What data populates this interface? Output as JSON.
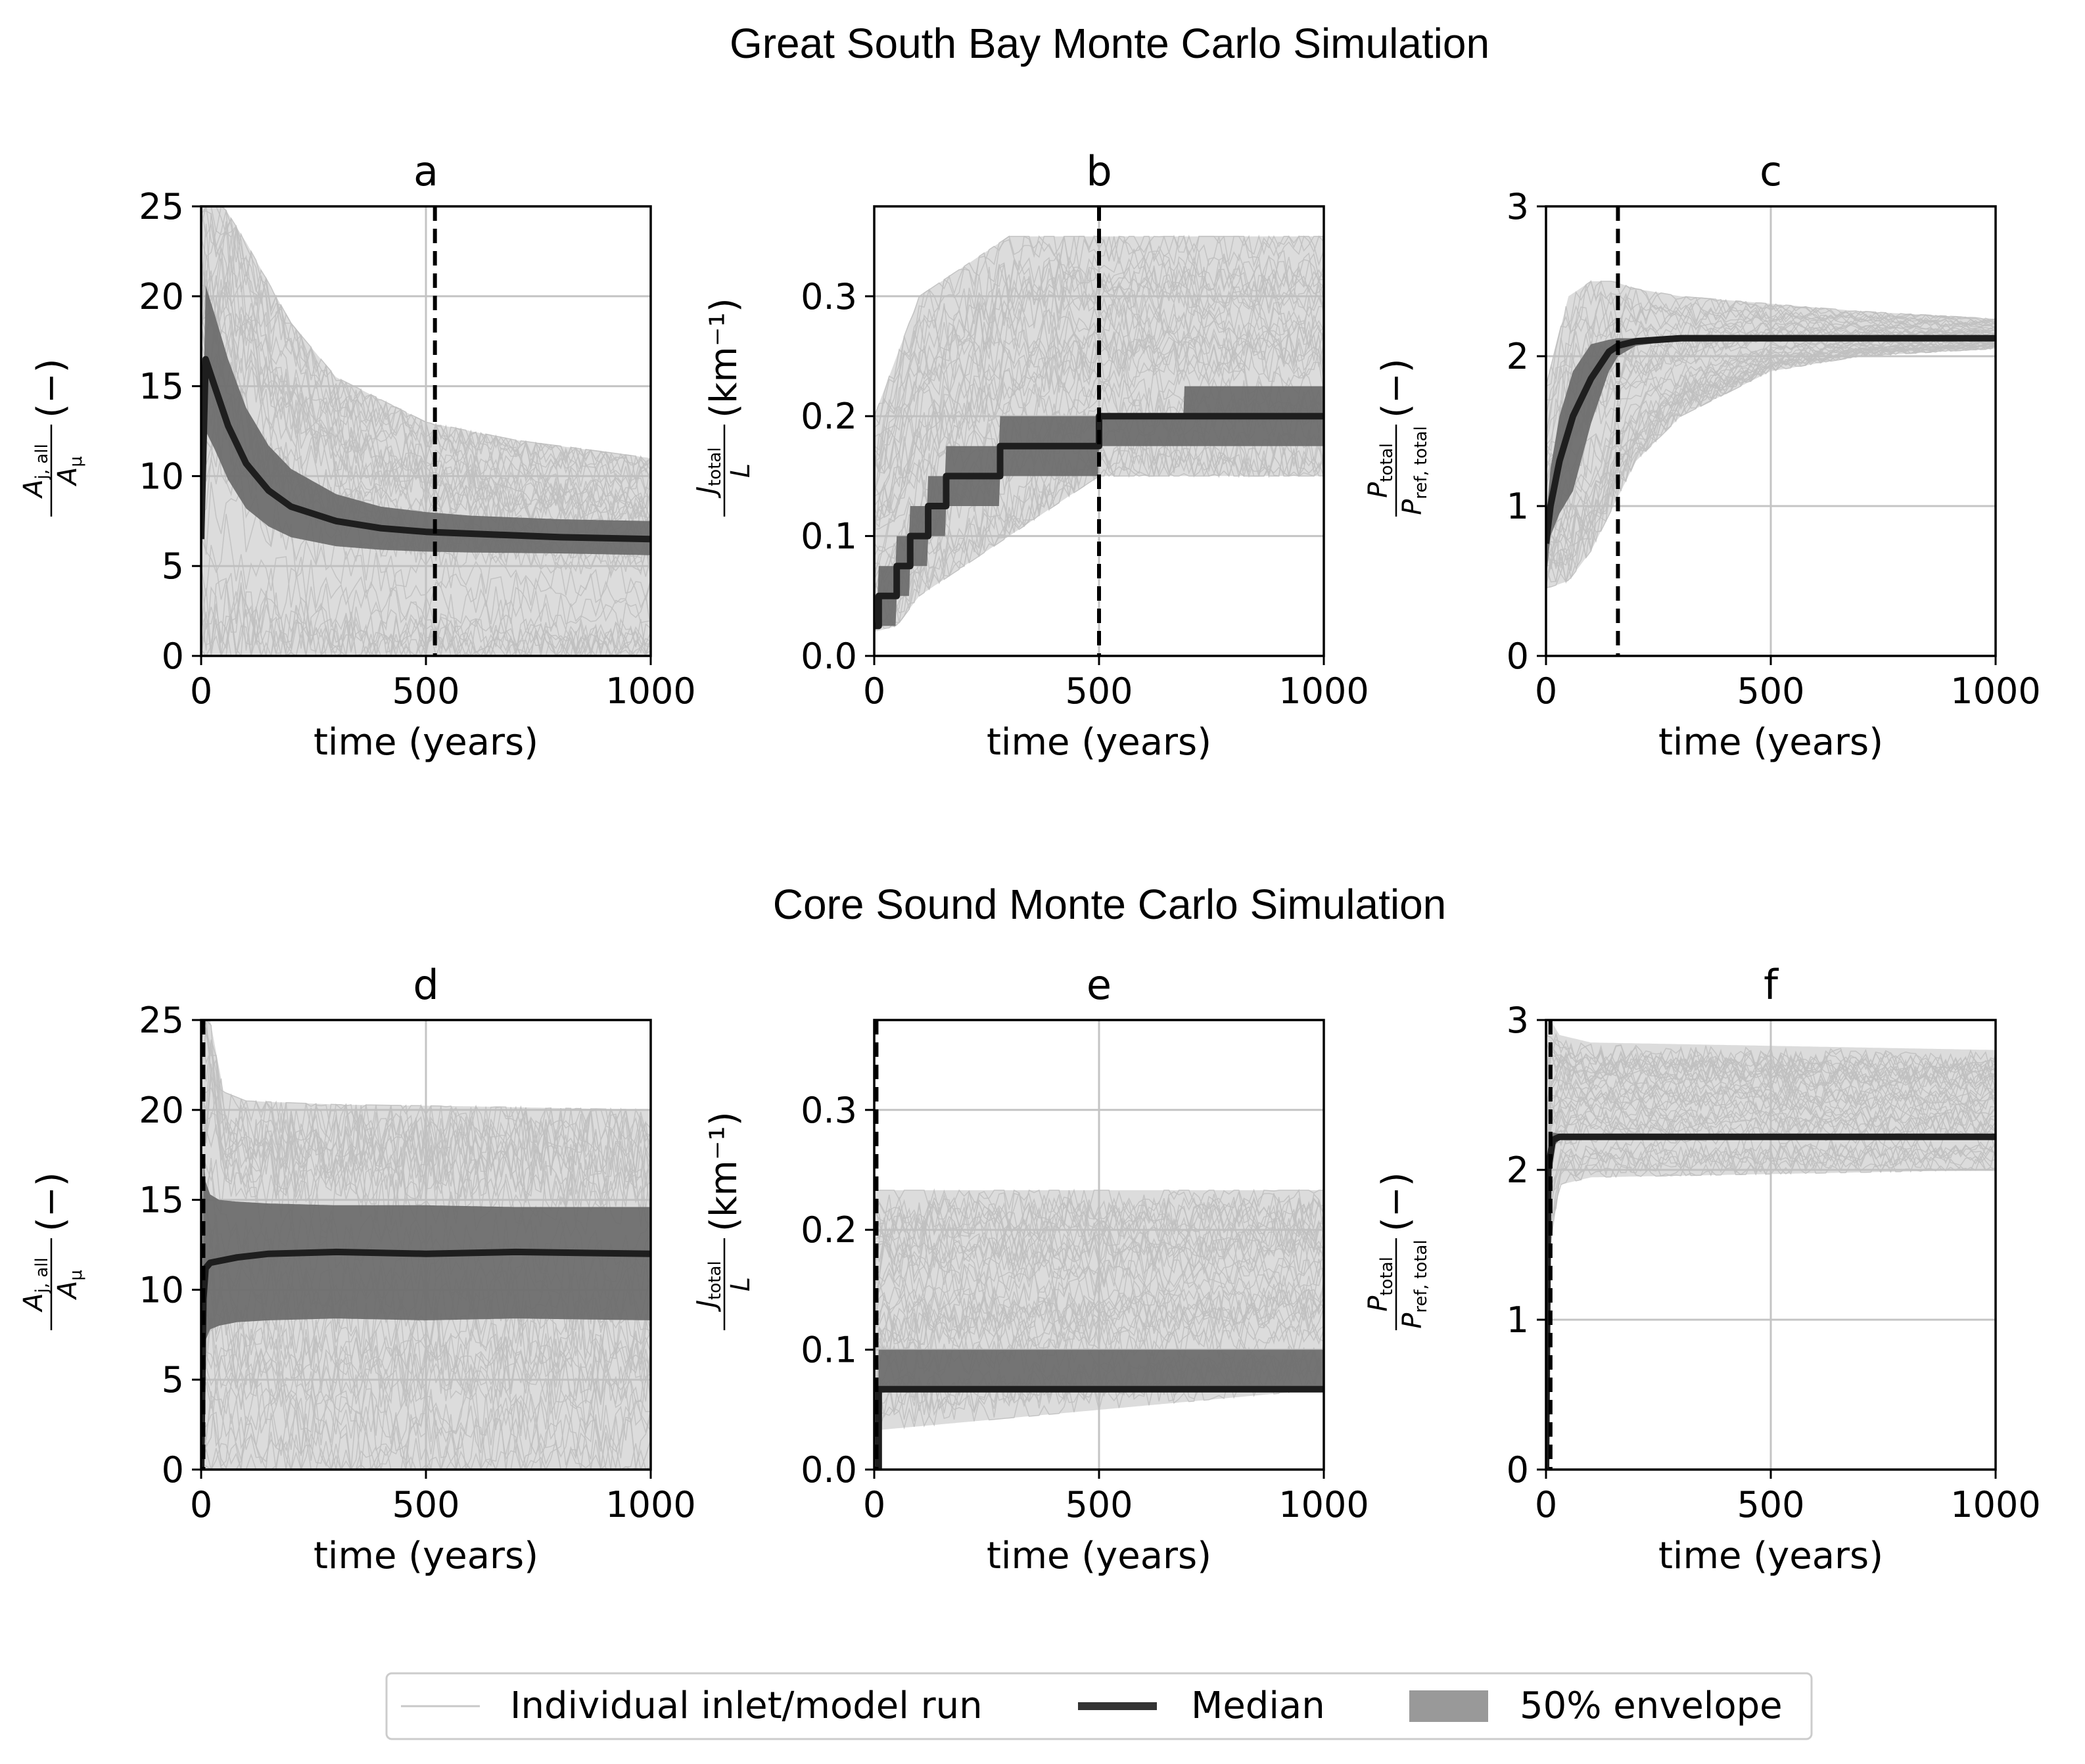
{
  "figure": {
    "row_titles": [
      "Great South Bay Monte Carlo Simulation",
      "Core Sound Monte Carlo Simulation"
    ]
  },
  "legend": {
    "items": [
      {
        "label": "Individual inlet/model run",
        "color": "#c8c8c8",
        "kind": "thin-line"
      },
      {
        "label": "Median",
        "color": "#333333",
        "kind": "thick-line"
      },
      {
        "label": "50% envelope",
        "color": "#999999",
        "kind": "patch"
      }
    ]
  },
  "colors": {
    "runs": "#c0c0c0",
    "envelope": "#6e6e6e",
    "median": "#1e1e1e",
    "grid": "#c4c4c4",
    "vline": "#000000"
  },
  "chart_data": [
    {
      "panel": "a",
      "type": "line",
      "title": "a",
      "row": 0,
      "col": 0,
      "xlabel": "time (years)",
      "ylabel": {
        "num": "A",
        "num_sub": "j, all",
        "den": "A",
        "den_sub": "μ",
        "unit": "(−)"
      },
      "xlim": [
        0,
        1000
      ],
      "ylim": [
        0,
        25
      ],
      "xticks": [
        0,
        500,
        1000
      ],
      "yticks": [
        0,
        5,
        10,
        15,
        20,
        25
      ],
      "grid": true,
      "step": false,
      "vline_x": 520,
      "median": {
        "x": [
          0,
          10,
          30,
          60,
          100,
          150,
          200,
          300,
          400,
          500,
          600,
          800,
          1000
        ],
        "y": [
          6.5,
          16.5,
          15.0,
          12.8,
          10.7,
          9.2,
          8.3,
          7.5,
          7.1,
          6.9,
          6.8,
          6.6,
          6.5
        ]
      },
      "q25": {
        "x": [
          0,
          10,
          30,
          60,
          100,
          150,
          200,
          300,
          400,
          500,
          600,
          800,
          1000
        ],
        "y": [
          6.0,
          12.5,
          11.5,
          9.8,
          8.2,
          7.2,
          6.6,
          6.1,
          5.9,
          5.8,
          5.75,
          5.7,
          5.6
        ]
      },
      "q75": {
        "x": [
          0,
          10,
          30,
          60,
          100,
          150,
          200,
          300,
          400,
          500,
          600,
          800,
          1000
        ],
        "y": [
          7.0,
          20.6,
          19.0,
          16.5,
          13.8,
          11.7,
          10.4,
          9.0,
          8.3,
          8.0,
          7.8,
          7.6,
          7.5
        ]
      },
      "runs_band": {
        "x": [
          0,
          50,
          100,
          200,
          300,
          500,
          700,
          1000
        ],
        "lo": [
          0,
          0,
          0,
          0,
          0,
          0,
          0,
          0
        ],
        "hi": [
          25,
          25,
          23,
          18.5,
          15.5,
          13,
          12,
          11
        ]
      }
    },
    {
      "panel": "b",
      "type": "line",
      "title": "b",
      "row": 0,
      "col": 1,
      "xlabel": "time (years)",
      "ylabel": {
        "num": "J",
        "num_sub": "total",
        "den": "L",
        "den_sub": "",
        "unit": "(km⁻¹)"
      },
      "xlim": [
        0,
        1000
      ],
      "ylim": [
        0,
        0.375
      ],
      "xticks": [
        0,
        500,
        1000
      ],
      "yticks": [
        0.0,
        0.1,
        0.2,
        0.3
      ],
      "ytick_labels": [
        "0.0",
        "0.1",
        "0.2",
        "0.3"
      ],
      "grid": true,
      "step": true,
      "vline_x": 500,
      "median": {
        "x": [
          0,
          10,
          50,
          80,
          120,
          160,
          200,
          280,
          500,
          1000
        ],
        "y": [
          0.025,
          0.05,
          0.075,
          0.1,
          0.125,
          0.15,
          0.15,
          0.175,
          0.2,
          0.2
        ]
      },
      "q25": {
        "x": [
          0,
          10,
          50,
          80,
          120,
          160,
          200,
          280,
          500,
          1000
        ],
        "y": [
          0.025,
          0.025,
          0.05,
          0.075,
          0.1,
          0.125,
          0.125,
          0.15,
          0.175,
          0.175
        ]
      },
      "q75": {
        "x": [
          0,
          10,
          50,
          80,
          120,
          160,
          200,
          280,
          500,
          690,
          810,
          1000
        ],
        "y": [
          0.05,
          0.075,
          0.1,
          0.125,
          0.15,
          0.175,
          0.175,
          0.2,
          0.2,
          0.225,
          0.225,
          0.225
        ]
      },
      "runs_band": {
        "x": [
          0,
          50,
          100,
          200,
          300,
          400,
          500,
          700,
          1000
        ],
        "lo": [
          0.02,
          0.025,
          0.05,
          0.075,
          0.1,
          0.125,
          0.15,
          0.15,
          0.15
        ],
        "hi": [
          0.2,
          0.25,
          0.3,
          0.325,
          0.35,
          0.35,
          0.35,
          0.35,
          0.35
        ]
      }
    },
    {
      "panel": "c",
      "type": "line",
      "title": "c",
      "row": 0,
      "col": 2,
      "xlabel": "time (years)",
      "ylabel": {
        "num": "P",
        "num_sub": "total",
        "den": "P",
        "den_sub": "ref, total",
        "unit": "(−)"
      },
      "xlim": [
        0,
        1000
      ],
      "ylim": [
        0,
        3
      ],
      "xticks": [
        0,
        500,
        1000
      ],
      "yticks": [
        0,
        1,
        2,
        3
      ],
      "grid": true,
      "step": false,
      "vline_x": 160,
      "median": {
        "x": [
          0,
          10,
          30,
          60,
          100,
          140,
          160,
          200,
          300,
          500,
          1000
        ],
        "y": [
          0.75,
          1.0,
          1.3,
          1.6,
          1.85,
          2.03,
          2.07,
          2.1,
          2.12,
          2.12,
          2.12
        ]
      },
      "q25": {
        "x": [
          0,
          10,
          30,
          60,
          100,
          140,
          160,
          200,
          300,
          500,
          1000
        ],
        "y": [
          0.5,
          0.8,
          0.95,
          1.1,
          1.55,
          1.9,
          2.0,
          2.07,
          2.11,
          2.12,
          2.12
        ]
      },
      "q75": {
        "x": [
          0,
          10,
          30,
          60,
          100,
          140,
          160,
          200,
          300,
          500,
          1000
        ],
        "y": [
          0.9,
          1.25,
          1.6,
          1.9,
          2.08,
          2.11,
          2.12,
          2.12,
          2.12,
          2.12,
          2.12
        ]
      },
      "runs_band": {
        "x": [
          0,
          50,
          100,
          150,
          200,
          300,
          500,
          700,
          1000
        ],
        "lo": [
          0.45,
          0.5,
          0.7,
          1.0,
          1.3,
          1.6,
          1.9,
          2.0,
          2.05
        ],
        "hi": [
          1.8,
          2.4,
          2.5,
          2.5,
          2.45,
          2.4,
          2.35,
          2.3,
          2.25
        ]
      }
    },
    {
      "panel": "d",
      "type": "line",
      "title": "d",
      "row": 1,
      "col": 0,
      "xlabel": "time (years)",
      "ylabel": {
        "num": "A",
        "num_sub": "j, all",
        "den": "A",
        "den_sub": "μ",
        "unit": "(−)"
      },
      "xlim": [
        0,
        1000
      ],
      "ylim": [
        0,
        25
      ],
      "xticks": [
        0,
        500,
        1000
      ],
      "yticks": [
        0,
        5,
        10,
        15,
        20,
        25
      ],
      "grid": true,
      "step": false,
      "vline_x": 5,
      "median": {
        "x": [
          0,
          5,
          10,
          20,
          40,
          80,
          150,
          300,
          500,
          700,
          1000
        ],
        "y": [
          0,
          9.5,
          11.2,
          11.5,
          11.6,
          11.8,
          12.0,
          12.1,
          12.0,
          12.1,
          12.0
        ]
      },
      "q25": {
        "x": [
          0,
          5,
          10,
          20,
          40,
          80,
          150,
          300,
          500,
          700,
          1000
        ],
        "y": [
          0,
          6.0,
          7.2,
          7.8,
          8.0,
          8.2,
          8.3,
          8.4,
          8.3,
          8.4,
          8.3
        ]
      },
      "q75": {
        "x": [
          0,
          5,
          10,
          20,
          40,
          80,
          150,
          300,
          500,
          700,
          1000
        ],
        "y": [
          0,
          17.5,
          16.0,
          15.3,
          15.0,
          14.9,
          14.8,
          14.7,
          14.7,
          14.6,
          14.6
        ]
      },
      "runs_band": {
        "x": [
          0,
          20,
          50,
          100,
          300,
          600,
          1000
        ],
        "lo": [
          0,
          0,
          0,
          0,
          0,
          0,
          0
        ],
        "hi": [
          25,
          25,
          21,
          20.5,
          20.3,
          20.2,
          20.0
        ]
      }
    },
    {
      "panel": "e",
      "type": "line",
      "title": "e",
      "row": 1,
      "col": 1,
      "xlabel": "time (years)",
      "ylabel": {
        "num": "J",
        "num_sub": "total",
        "den": "L",
        "den_sub": "",
        "unit": "(km⁻¹)"
      },
      "xlim": [
        0,
        1000
      ],
      "ylim": [
        0,
        0.375
      ],
      "xticks": [
        0,
        500,
        1000
      ],
      "yticks": [
        0.0,
        0.1,
        0.2,
        0.3
      ],
      "ytick_labels": [
        "0.0",
        "0.1",
        "0.2",
        "0.3"
      ],
      "grid": true,
      "step": true,
      "vline_x": 5,
      "median": {
        "x": [
          0,
          10,
          1000
        ],
        "y": [
          0.0,
          0.067,
          0.067
        ]
      },
      "q25": {
        "x": [
          0,
          10,
          1000
        ],
        "y": [
          0.0,
          0.067,
          0.067
        ]
      },
      "q75": {
        "x": [
          0,
          10,
          1000
        ],
        "y": [
          0.0,
          0.1,
          0.1
        ]
      },
      "runs_band": {
        "x": [
          0,
          10,
          1000
        ],
        "lo": [
          0,
          0.033,
          0.067
        ],
        "hi": [
          0.233,
          0.233,
          0.233
        ]
      }
    },
    {
      "panel": "f",
      "type": "line",
      "title": "f",
      "row": 1,
      "col": 2,
      "xlabel": "time (years)",
      "ylabel": {
        "num": "P",
        "num_sub": "total",
        "den": "P",
        "den_sub": "ref, total",
        "unit": "(−)"
      },
      "xlim": [
        0,
        1000
      ],
      "ylim": [
        0,
        3
      ],
      "xticks": [
        0,
        500,
        1000
      ],
      "yticks": [
        0,
        1,
        2,
        3
      ],
      "grid": true,
      "step": false,
      "vline_x": 10,
      "median": {
        "x": [
          0,
          5,
          15,
          30,
          60,
          100,
          300,
          500,
          1000
        ],
        "y": [
          0,
          2.0,
          2.2,
          2.22,
          2.22,
          2.22,
          2.22,
          2.22,
          2.22
        ]
      },
      "q25": {
        "x": [
          0,
          5,
          15,
          30,
          60,
          100,
          300,
          500,
          1000
        ],
        "y": [
          0,
          1.9,
          2.15,
          2.2,
          2.2,
          2.2,
          2.2,
          2.2,
          2.2
        ]
      },
      "q75": {
        "x": [
          0,
          5,
          15,
          30,
          60,
          100,
          300,
          500,
          1000
        ],
        "y": [
          0,
          2.1,
          2.25,
          2.24,
          2.24,
          2.24,
          2.24,
          2.24,
          2.24
        ]
      },
      "runs_band": {
        "x": [
          0,
          10,
          30,
          100,
          1000
        ],
        "lo": [
          0,
          1.5,
          1.9,
          1.95,
          2.0
        ],
        "hi": [
          3.0,
          3.0,
          2.9,
          2.85,
          2.8
        ]
      }
    }
  ]
}
